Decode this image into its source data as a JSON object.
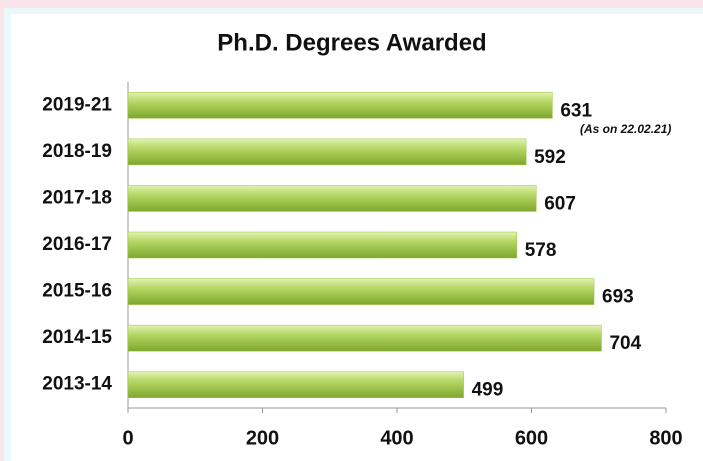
{
  "chart_data": {
    "type": "barh",
    "title": "Ph.D. Degrees Awarded",
    "categories": [
      "2019-21",
      "2018-19",
      "2017-18",
      "2016-17",
      "2015-16",
      "2014-15",
      "2013-14"
    ],
    "values": [
      631,
      592,
      607,
      578,
      693,
      704,
      499
    ],
    "annotation": "(As on 22.02.21)",
    "color": "#9bc43c",
    "xlim": [
      0,
      800
    ],
    "xticks": [
      0,
      200,
      400,
      600,
      800
    ],
    "grid": false
  }
}
